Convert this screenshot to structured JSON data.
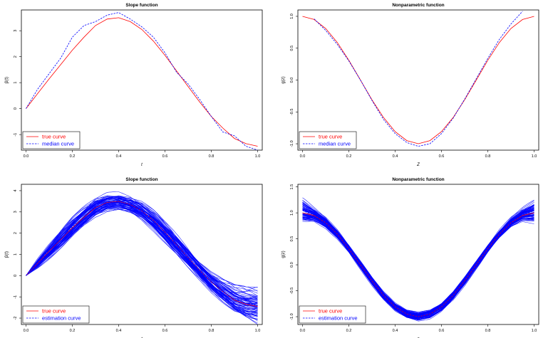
{
  "chart_data": [
    {
      "type": "line",
      "title": "Slope function",
      "xlabel": "t",
      "ylabel": "β(t)",
      "xlim": [
        -0.02,
        1.02
      ],
      "ylim": [
        -1.6,
        3.8
      ],
      "xticks": [
        "0.0",
        "0.2",
        "0.4",
        "0.6",
        "0.8",
        "1.0"
      ],
      "yticks": [
        "-1",
        "0",
        "1",
        "2",
        "3"
      ],
      "legend": {
        "position": "bottom-left",
        "entries": [
          "true curve",
          "median curve"
        ]
      },
      "grid": false,
      "series": [
        {
          "name": "true curve",
          "color": "#ff0000",
          "style": "solid",
          "x": [
            0.0,
            0.05,
            0.1,
            0.15,
            0.2,
            0.25,
            0.3,
            0.35,
            0.4,
            0.45,
            0.5,
            0.55,
            0.6,
            0.65,
            0.7,
            0.75,
            0.8,
            0.85,
            0.9,
            0.95,
            1.0
          ],
          "y": [
            0.0,
            0.58,
            1.15,
            1.7,
            2.25,
            2.75,
            3.2,
            3.45,
            3.5,
            3.35,
            3.05,
            2.6,
            2.05,
            1.45,
            0.85,
            0.25,
            -0.3,
            -0.75,
            -1.15,
            -1.35,
            -1.45
          ]
        },
        {
          "name": "median curve",
          "color": "#0000ff",
          "style": "dashed",
          "x": [
            0.0,
            0.05,
            0.1,
            0.15,
            0.2,
            0.25,
            0.3,
            0.35,
            0.4,
            0.45,
            0.5,
            0.55,
            0.6,
            0.65,
            0.7,
            0.75,
            0.8,
            0.85,
            0.9,
            0.95,
            1.0
          ],
          "y": [
            0.0,
            0.75,
            1.35,
            1.95,
            2.75,
            3.2,
            3.35,
            3.6,
            3.7,
            3.45,
            3.15,
            2.75,
            2.15,
            1.4,
            0.95,
            0.35,
            -0.3,
            -0.9,
            -1.05,
            -1.45,
            -1.6
          ]
        }
      ]
    },
    {
      "type": "line",
      "title": "Nonparametric function",
      "xlabel": "Z",
      "ylabel": "g(z)",
      "xlim": [
        -0.02,
        1.02
      ],
      "ylim": [
        -1.1,
        1.1
      ],
      "xticks": [
        "0.0",
        "0.2",
        "0.4",
        "0.6",
        "0.8",
        "1.0"
      ],
      "yticks": [
        "-1.0",
        "-0.5",
        "0.0",
        "0.5",
        "1.0"
      ],
      "legend": {
        "position": "bottom-left",
        "entries": [
          "true curve",
          "median curve"
        ]
      },
      "grid": false,
      "series": [
        {
          "name": "true curve",
          "color": "#ff0000",
          "style": "solid",
          "x": [
            0.0,
            0.05,
            0.1,
            0.15,
            0.2,
            0.25,
            0.3,
            0.35,
            0.4,
            0.45,
            0.5,
            0.55,
            0.6,
            0.65,
            0.7,
            0.75,
            0.8,
            0.85,
            0.9,
            0.95,
            1.0
          ],
          "y": [
            1.0,
            0.95,
            0.81,
            0.59,
            0.31,
            0.0,
            -0.31,
            -0.59,
            -0.81,
            -0.95,
            -1.0,
            -0.95,
            -0.81,
            -0.59,
            -0.31,
            0.0,
            0.31,
            0.59,
            0.81,
            0.95,
            1.0
          ]
        },
        {
          "name": "median curve",
          "color": "#0000ff",
          "style": "dashed",
          "x": [
            0.05,
            0.1,
            0.15,
            0.2,
            0.25,
            0.3,
            0.35,
            0.4,
            0.45,
            0.5,
            0.55,
            0.6,
            0.65,
            0.7,
            0.75,
            0.8,
            0.85,
            0.9,
            0.95
          ],
          "y": [
            0.96,
            0.78,
            0.56,
            0.3,
            0.0,
            -0.32,
            -0.62,
            -0.84,
            -0.98,
            -1.04,
            -1.0,
            -0.84,
            -0.6,
            -0.3,
            0.02,
            0.34,
            0.64,
            0.88,
            1.08
          ]
        }
      ]
    },
    {
      "type": "line",
      "title": "Slope function",
      "xlabel": "t",
      "ylabel": "β(t)",
      "xlim": [
        -0.02,
        1.02
      ],
      "ylim": [
        -2.3,
        4.3
      ],
      "xticks": [
        "0.0",
        "0.2",
        "0.4",
        "0.6",
        "0.8",
        "1.0"
      ],
      "yticks": [
        "-2",
        "-1",
        "0",
        "1",
        "2",
        "3",
        "4"
      ],
      "legend": {
        "position": "bottom-left",
        "entries": [
          "true curve",
          "estimation curve"
        ]
      },
      "grid": false,
      "band": {
        "color": "#0000ff",
        "lower_offset": [
          0.0,
          0.25,
          0.4,
          0.5,
          0.55,
          0.55,
          0.55,
          0.55,
          0.55,
          0.55,
          0.55,
          0.55,
          0.55,
          0.55,
          0.55,
          0.55,
          0.6,
          0.7,
          0.8,
          0.9,
          1.0
        ],
        "upper_offset": [
          0.0,
          0.25,
          0.4,
          0.5,
          0.55,
          0.55,
          0.55,
          0.55,
          0.55,
          0.55,
          0.55,
          0.55,
          0.55,
          0.55,
          0.55,
          0.55,
          0.6,
          0.7,
          0.8,
          0.9,
          1.0
        ]
      },
      "series": [
        {
          "name": "true curve",
          "color": "#ff0000",
          "style": "solid",
          "x": [
            0.0,
            0.05,
            0.1,
            0.15,
            0.2,
            0.25,
            0.3,
            0.35,
            0.4,
            0.45,
            0.5,
            0.55,
            0.6,
            0.65,
            0.7,
            0.75,
            0.8,
            0.85,
            0.9,
            0.95,
            1.0
          ],
          "y": [
            0.0,
            0.58,
            1.15,
            1.7,
            2.25,
            2.75,
            3.2,
            3.45,
            3.5,
            3.35,
            3.05,
            2.6,
            2.05,
            1.45,
            0.85,
            0.25,
            -0.3,
            -0.75,
            -1.15,
            -1.35,
            -1.45
          ]
        },
        {
          "name": "estimation curve",
          "color": "#0000ff",
          "style": "dashed",
          "x": [
            0.0,
            0.05,
            0.1,
            0.15,
            0.2,
            0.25,
            0.3,
            0.35,
            0.4,
            0.45,
            0.5,
            0.55,
            0.6,
            0.65,
            0.7,
            0.75,
            0.8,
            0.85,
            0.9,
            0.95,
            1.0
          ],
          "y": [
            0.0,
            0.6,
            1.18,
            1.72,
            2.28,
            2.78,
            3.22,
            3.47,
            3.52,
            3.36,
            3.05,
            2.6,
            2.05,
            1.45,
            0.85,
            0.25,
            -0.3,
            -0.75,
            -1.12,
            -1.3,
            -1.4
          ]
        }
      ]
    },
    {
      "type": "line",
      "title": "Nonparametric function",
      "xlabel": "z",
      "ylabel": "g(z)",
      "xlim": [
        -0.02,
        1.02
      ],
      "ylim": [
        -1.15,
        1.55
      ],
      "xticks": [
        "0.0",
        "0.2",
        "0.4",
        "0.6",
        "0.8",
        "1.0"
      ],
      "yticks": [
        "-1.0",
        "-0.5",
        "0.0",
        "0.5",
        "1.0",
        "1.5"
      ],
      "legend": {
        "position": "bottom-left",
        "entries": [
          "true curve",
          "estimation curve"
        ]
      },
      "grid": false,
      "band": {
        "color": "#0000ff",
        "lower_offset": [
          0.2,
          0.14,
          0.12,
          0.11,
          0.1,
          0.1,
          0.1,
          0.1,
          0.1,
          0.1,
          0.1,
          0.1,
          0.1,
          0.1,
          0.1,
          0.1,
          0.1,
          0.11,
          0.12,
          0.14,
          0.22
        ],
        "upper_offset": [
          0.35,
          0.18,
          0.13,
          0.11,
          0.1,
          0.1,
          0.1,
          0.1,
          0.1,
          0.1,
          0.1,
          0.1,
          0.1,
          0.1,
          0.1,
          0.1,
          0.1,
          0.11,
          0.13,
          0.18,
          0.3
        ]
      },
      "series": [
        {
          "name": "true curve",
          "color": "#ff0000",
          "style": "solid",
          "x": [
            0.0,
            0.05,
            0.1,
            0.15,
            0.2,
            0.25,
            0.3,
            0.35,
            0.4,
            0.45,
            0.5,
            0.55,
            0.6,
            0.65,
            0.7,
            0.75,
            0.8,
            0.85,
            0.9,
            0.95,
            1.0
          ],
          "y": [
            1.0,
            0.95,
            0.81,
            0.59,
            0.31,
            0.0,
            -0.31,
            -0.59,
            -0.81,
            -0.95,
            -1.0,
            -0.95,
            -0.81,
            -0.59,
            -0.31,
            0.0,
            0.31,
            0.59,
            0.81,
            0.95,
            1.0
          ]
        },
        {
          "name": "estimation curve",
          "color": "#0000ff",
          "style": "dashed",
          "x": [
            0.0,
            0.05,
            0.1,
            0.15,
            0.2,
            0.25,
            0.3,
            0.35,
            0.4,
            0.45,
            0.5,
            0.55,
            0.6,
            0.65,
            0.7,
            0.75,
            0.8,
            0.85,
            0.9,
            0.95,
            1.0
          ],
          "y": [
            1.05,
            0.96,
            0.81,
            0.59,
            0.31,
            0.0,
            -0.31,
            -0.59,
            -0.81,
            -0.95,
            -1.0,
            -0.95,
            -0.81,
            -0.59,
            -0.31,
            0.0,
            0.31,
            0.59,
            0.81,
            0.96,
            1.04
          ]
        }
      ]
    }
  ]
}
